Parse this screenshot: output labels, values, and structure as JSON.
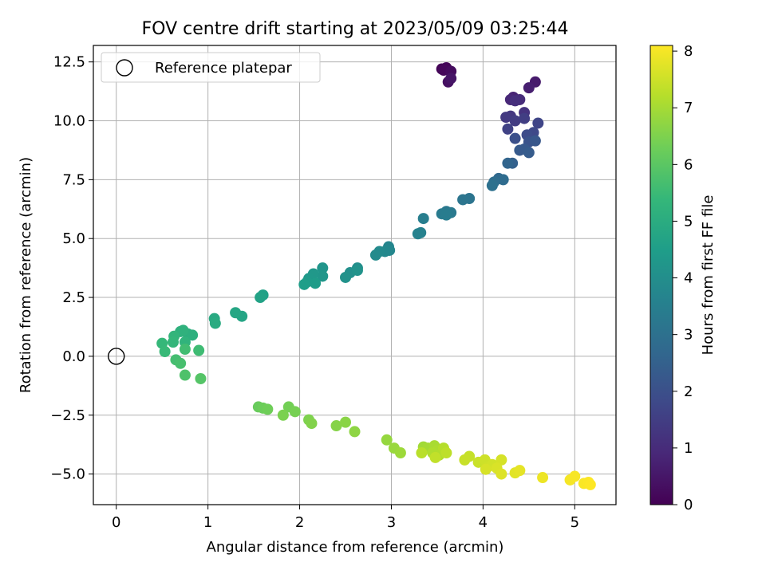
{
  "chart_data": {
    "type": "scatter",
    "title": "FOV centre drift starting at 2023/05/09 03:25:44",
    "xlabel": "Angular distance from reference (arcmin)",
    "ylabel": "Rotation from reference (arcmin)",
    "xlim": [
      -0.25,
      5.45
    ],
    "ylim": [
      -6.3,
      13.2
    ],
    "xticks": [
      0,
      1,
      2,
      3,
      4,
      5
    ],
    "xtick_labels": [
      "0",
      "1",
      "2",
      "3",
      "4",
      "5"
    ],
    "yticks": [
      -5,
      -2.5,
      0,
      2.5,
      5,
      7.5,
      10,
      12.5
    ],
    "ytick_labels": [
      "−5.0",
      "−2.5",
      "0.0",
      "2.5",
      "5.0",
      "7.5",
      "10.0",
      "12.5"
    ],
    "grid": true,
    "legend": {
      "position": "top-left",
      "entries": [
        {
          "label": "Reference platepar",
          "marker": "open-circle",
          "x": 0,
          "y": 0
        }
      ]
    },
    "colorbar": {
      "label": "Hours from first FF file",
      "range": [
        0,
        8.1
      ],
      "ticks": [
        0,
        1,
        2,
        3,
        4,
        5,
        6,
        7,
        8
      ],
      "tick_labels": [
        "0",
        "1",
        "2",
        "3",
        "4",
        "5",
        "6",
        "7",
        "8"
      ],
      "colormap": "viridis",
      "colormap_stops": [
        "#440154",
        "#482878",
        "#3e4989",
        "#31688e",
        "#26828e",
        "#1f9e89",
        "#35b779",
        "#6ece58",
        "#b5de2b",
        "#fde725"
      ]
    },
    "series": [
      {
        "points": [
          [
            3.55,
            12.2,
            0.05
          ],
          [
            3.6,
            12.25,
            0.1
          ],
          [
            3.57,
            12.15,
            0.15
          ],
          [
            3.65,
            12.1,
            0.25
          ],
          [
            3.62,
            11.65,
            0.35
          ],
          [
            3.65,
            11.8,
            0.45
          ],
          [
            4.57,
            11.65,
            0.6
          ],
          [
            4.5,
            11.4,
            0.7
          ],
          [
            4.33,
            11.0,
            0.8
          ],
          [
            4.3,
            10.9,
            0.9
          ],
          [
            4.4,
            10.9,
            1.0
          ],
          [
            4.35,
            10.85,
            1.1
          ],
          [
            4.45,
            10.35,
            1.2
          ],
          [
            4.3,
            10.2,
            1.3
          ],
          [
            4.25,
            10.15,
            1.35
          ],
          [
            4.35,
            10.0,
            1.45
          ],
          [
            4.45,
            10.1,
            1.5
          ],
          [
            4.27,
            9.65,
            1.6
          ],
          [
            4.6,
            9.9,
            1.7
          ],
          [
            4.55,
            9.5,
            1.8
          ],
          [
            4.48,
            9.4,
            1.9
          ],
          [
            4.35,
            9.25,
            2.0
          ],
          [
            4.5,
            9.1,
            2.1
          ],
          [
            4.57,
            9.15,
            2.2
          ],
          [
            4.45,
            8.8,
            2.25
          ],
          [
            4.4,
            8.75,
            2.3
          ],
          [
            4.5,
            8.65,
            2.35
          ],
          [
            4.32,
            8.2,
            2.5
          ],
          [
            4.27,
            8.2,
            2.6
          ],
          [
            4.17,
            7.55,
            2.75
          ],
          [
            4.22,
            7.5,
            2.85
          ],
          [
            4.12,
            7.4,
            2.9
          ],
          [
            4.1,
            7.25,
            3.0
          ],
          [
            3.85,
            6.7,
            3.1
          ],
          [
            3.78,
            6.65,
            3.15
          ],
          [
            3.6,
            6.15,
            3.25
          ],
          [
            3.65,
            6.1,
            3.3
          ],
          [
            3.55,
            6.05,
            3.35
          ],
          [
            3.6,
            6.0,
            3.4
          ],
          [
            3.35,
            5.85,
            3.45
          ],
          [
            3.32,
            5.25,
            3.55
          ],
          [
            3.29,
            5.2,
            3.6
          ],
          [
            2.97,
            4.65,
            3.7
          ],
          [
            2.98,
            4.5,
            3.75
          ],
          [
            2.93,
            4.45,
            3.8
          ],
          [
            2.87,
            4.45,
            3.85
          ],
          [
            2.83,
            4.3,
            3.9
          ],
          [
            2.63,
            3.75,
            4.0
          ],
          [
            2.55,
            3.55,
            4.05
          ],
          [
            2.5,
            3.35,
            4.1
          ],
          [
            2.63,
            3.65,
            4.15
          ],
          [
            2.25,
            3.75,
            4.2
          ],
          [
            2.25,
            3.4,
            4.25
          ],
          [
            2.15,
            3.5,
            4.3
          ],
          [
            2.1,
            3.3,
            4.35
          ],
          [
            2.08,
            3.15,
            4.4
          ],
          [
            2.17,
            3.1,
            4.45
          ],
          [
            2.05,
            3.05,
            4.5
          ],
          [
            1.6,
            2.6,
            4.6
          ],
          [
            1.57,
            2.5,
            4.65
          ],
          [
            1.37,
            1.7,
            4.75
          ],
          [
            1.3,
            1.85,
            4.8
          ],
          [
            1.07,
            1.6,
            4.9
          ],
          [
            1.08,
            1.4,
            4.95
          ],
          [
            0.78,
            0.95,
            5.05
          ],
          [
            0.83,
            0.9,
            5.1
          ],
          [
            0.7,
            1.05,
            5.15
          ],
          [
            0.73,
            1.1,
            5.2
          ],
          [
            0.75,
            0.6,
            5.25
          ],
          [
            0.63,
            0.85,
            5.3
          ],
          [
            0.62,
            0.6,
            5.35
          ],
          [
            0.5,
            0.55,
            5.4
          ],
          [
            0.53,
            0.2,
            5.45
          ],
          [
            0.9,
            0.25,
            5.55
          ],
          [
            0.75,
            0.3,
            5.6
          ],
          [
            0.65,
            -0.15,
            5.65
          ],
          [
            0.7,
            -0.3,
            5.7
          ],
          [
            0.75,
            -0.8,
            5.8
          ],
          [
            0.92,
            -0.95,
            5.9
          ],
          [
            1.55,
            -2.15,
            6.2
          ],
          [
            1.6,
            -2.2,
            6.25
          ],
          [
            1.65,
            -2.25,
            6.3
          ],
          [
            1.88,
            -2.15,
            6.35
          ],
          [
            1.95,
            -2.35,
            6.4
          ],
          [
            1.82,
            -2.5,
            6.45
          ],
          [
            2.1,
            -2.7,
            6.5
          ],
          [
            2.13,
            -2.85,
            6.55
          ],
          [
            2.4,
            -2.95,
            6.6
          ],
          [
            2.5,
            -2.8,
            6.65
          ],
          [
            2.6,
            -3.2,
            6.7
          ],
          [
            2.95,
            -3.55,
            6.8
          ],
          [
            3.03,
            -3.9,
            6.85
          ],
          [
            3.1,
            -4.1,
            6.9
          ],
          [
            3.35,
            -3.85,
            6.95
          ],
          [
            3.4,
            -3.9,
            7.0
          ],
          [
            3.47,
            -3.8,
            7.05
          ],
          [
            3.5,
            -4.0,
            7.1
          ],
          [
            3.45,
            -4.1,
            7.12
          ],
          [
            3.52,
            -4.2,
            7.15
          ],
          [
            3.57,
            -3.9,
            7.2
          ],
          [
            3.33,
            -4.1,
            7.25
          ],
          [
            3.6,
            -4.1,
            7.3
          ],
          [
            3.48,
            -4.3,
            7.35
          ],
          [
            3.85,
            -4.25,
            7.4
          ],
          [
            3.8,
            -4.4,
            7.42
          ],
          [
            3.95,
            -4.5,
            7.45
          ],
          [
            4.02,
            -4.4,
            7.5
          ],
          [
            4.05,
            -4.7,
            7.52
          ],
          [
            4.1,
            -4.6,
            7.55
          ],
          [
            4.2,
            -4.4,
            7.6
          ],
          [
            4.03,
            -4.8,
            7.62
          ],
          [
            4.15,
            -4.75,
            7.65
          ],
          [
            4.2,
            -5.0,
            7.7
          ],
          [
            4.35,
            -4.95,
            7.75
          ],
          [
            4.4,
            -4.85,
            7.8
          ],
          [
            4.65,
            -5.15,
            7.9
          ],
          [
            4.95,
            -5.25,
            8.0
          ],
          [
            5.0,
            -5.1,
            8.02
          ],
          [
            5.1,
            -5.4,
            8.05
          ],
          [
            5.15,
            -5.35,
            8.07
          ],
          [
            5.17,
            -5.45,
            8.1
          ]
        ]
      }
    ]
  }
}
